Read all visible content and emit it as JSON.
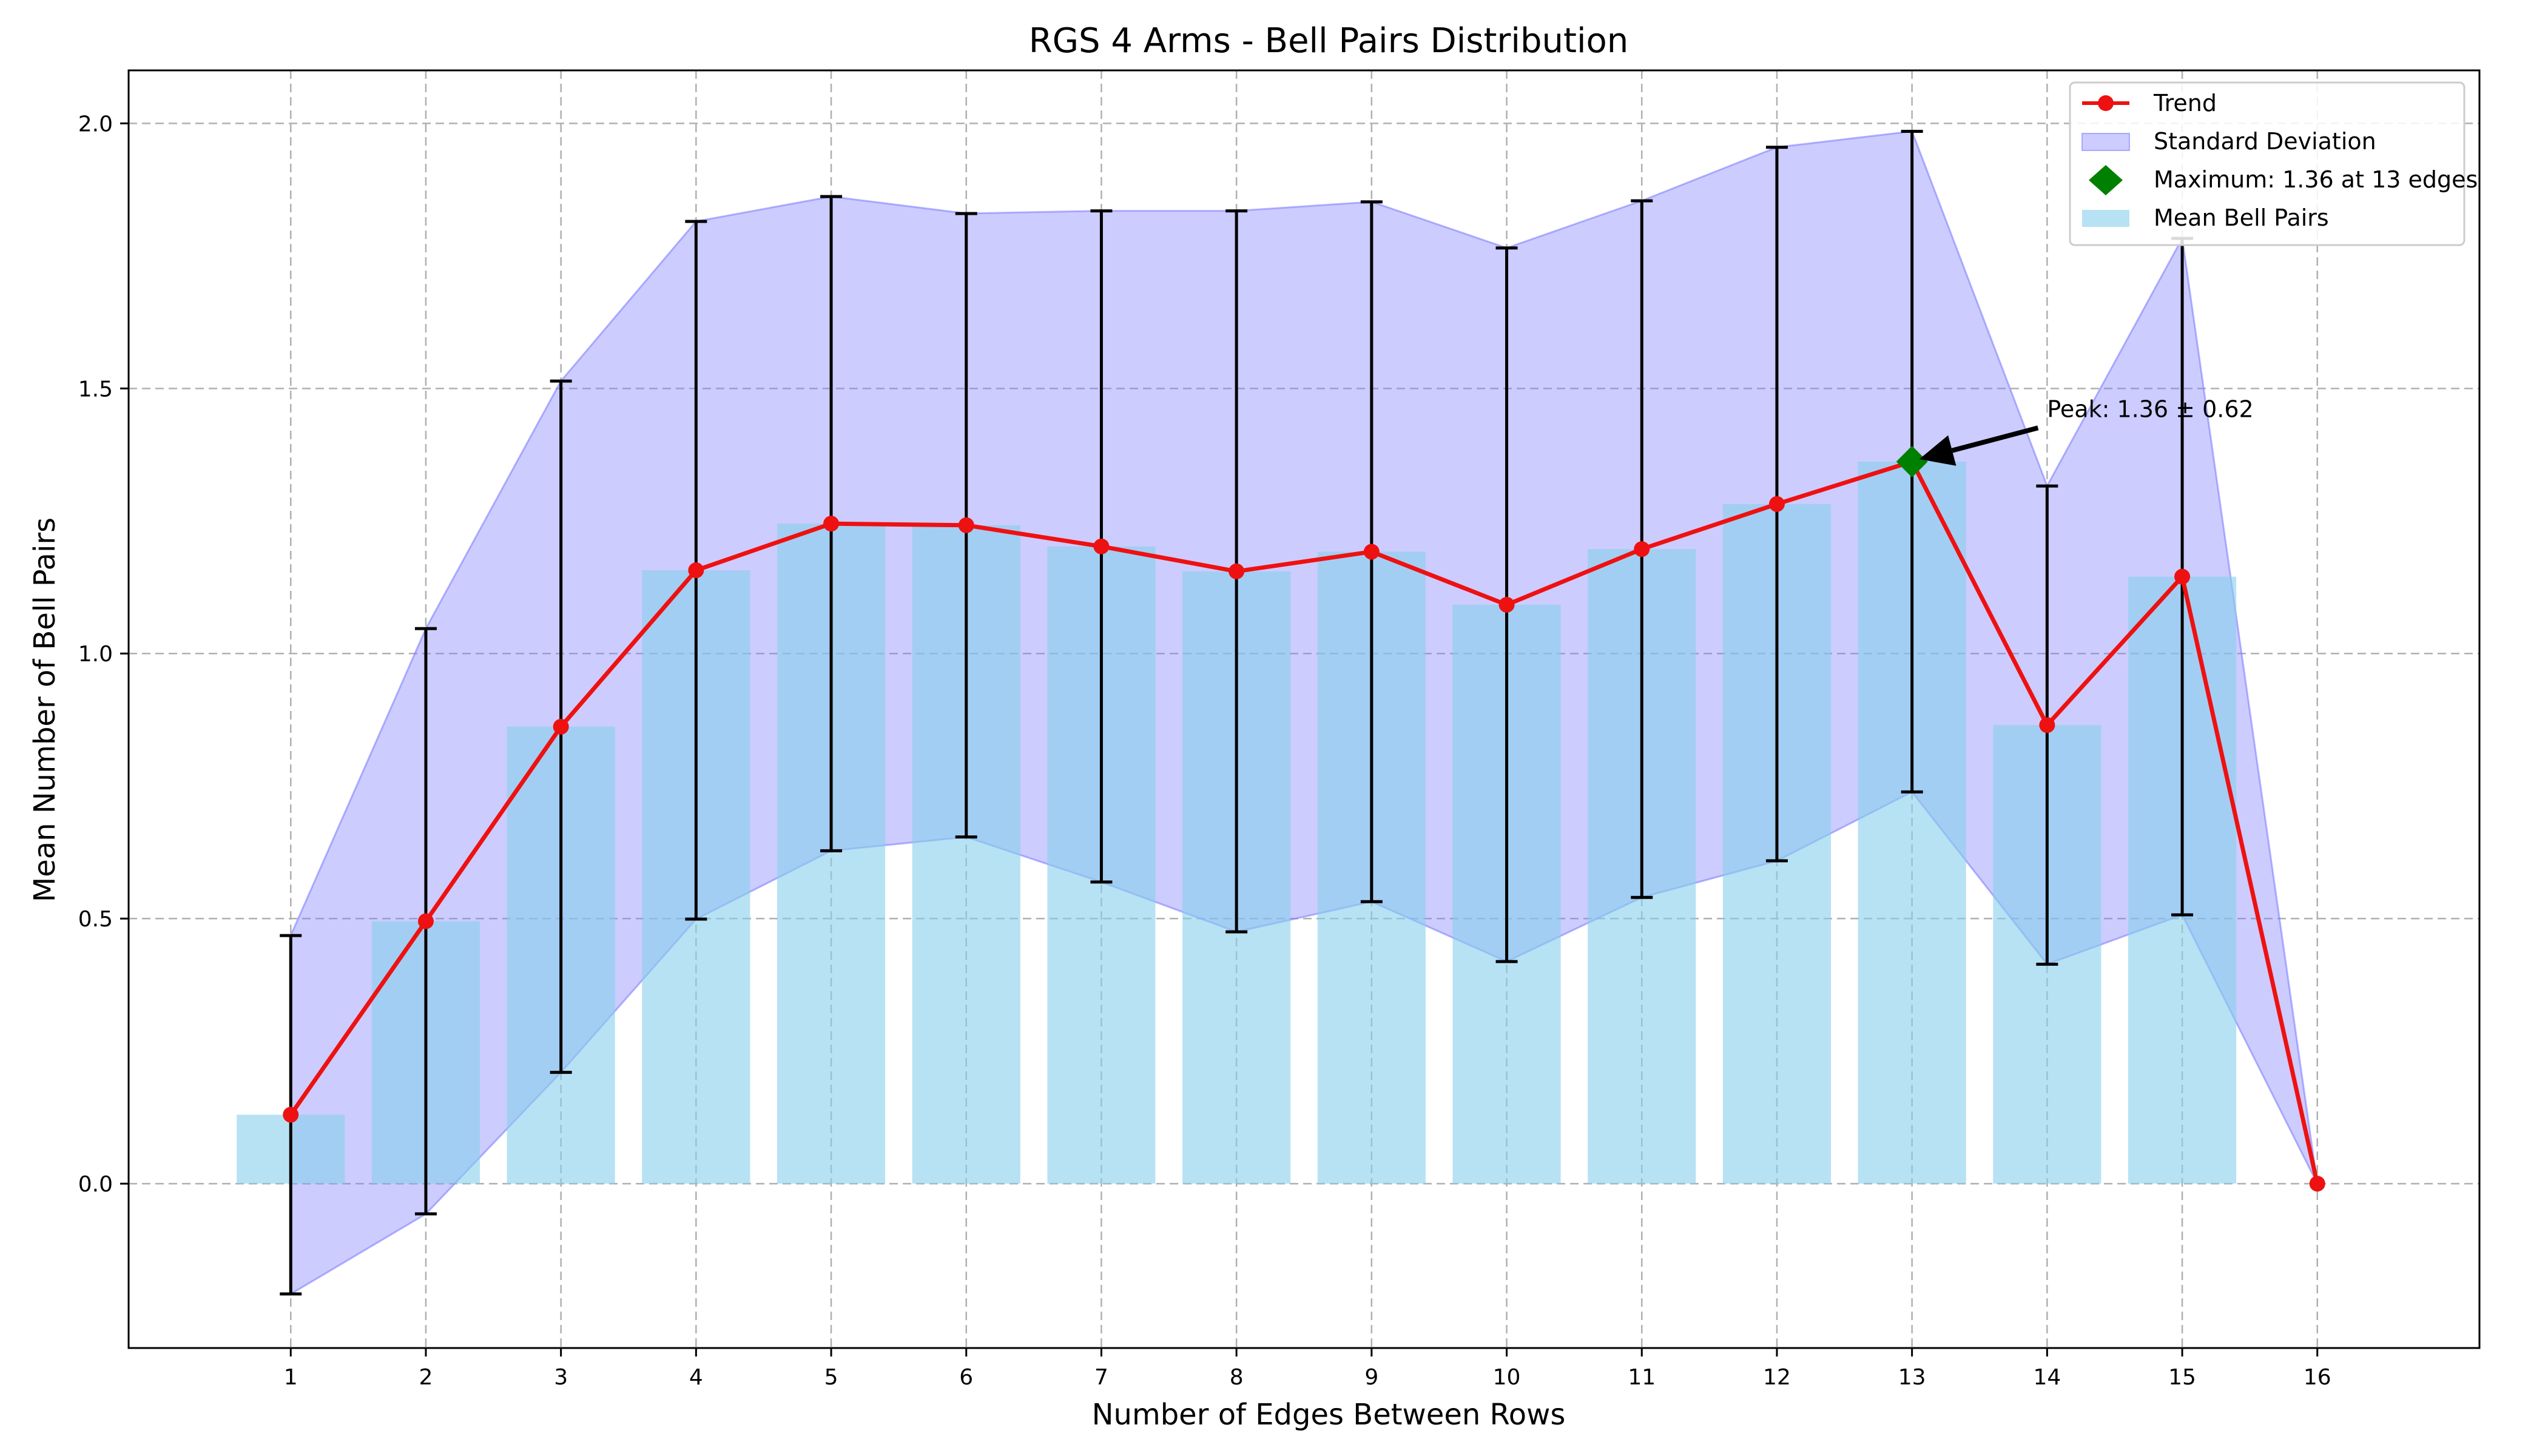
{
  "chart_data": {
    "type": "bar",
    "title": "RGS 4 Arms - Bell Pairs Distribution",
    "xlabel": "Number of Edges Between Rows",
    "ylabel": "Mean Number of Bell Pairs",
    "xlim": [
      -0.2,
      17.2
    ],
    "ylim": [
      -0.31,
      2.1
    ],
    "grid": true,
    "legend_position": "top-right",
    "x": [
      1,
      2,
      3,
      4,
      5,
      6,
      7,
      8,
      9,
      10,
      11,
      12,
      13,
      14,
      15,
      16
    ],
    "x_tick_labels": [
      "1",
      "2",
      "3",
      "4",
      "5",
      "6",
      "7",
      "8",
      "9",
      "10",
      "11",
      "12",
      "13",
      "14",
      "15",
      "16"
    ],
    "y_ticks": [
      0.0,
      0.5,
      1.0,
      1.5,
      2.0
    ],
    "y_tick_labels": [
      "0.0",
      "0.5",
      "1.0",
      "1.5",
      "2.0"
    ],
    "series": [
      {
        "name": "Mean Bell Pairs",
        "kind": "bar",
        "color": "#87ceeb",
        "values": [
          0.13,
          0.495,
          0.862,
          1.157,
          1.245,
          1.242,
          1.202,
          1.155,
          1.192,
          1.092,
          1.197,
          1.282,
          1.362,
          0.865,
          1.145,
          0.0
        ]
      },
      {
        "name": "Trend",
        "kind": "line",
        "color": "#ee1111",
        "values": [
          0.13,
          0.495,
          0.862,
          1.157,
          1.245,
          1.242,
          1.202,
          1.155,
          1.192,
          1.092,
          1.197,
          1.282,
          1.362,
          0.865,
          1.145,
          0.0
        ]
      },
      {
        "name": "Standard Deviation",
        "kind": "band",
        "color": "#8080ff",
        "std": [
          0.338,
          0.552,
          0.652,
          0.658,
          0.617,
          0.588,
          0.633,
          0.68,
          0.66,
          0.673,
          0.657,
          0.673,
          0.623,
          0.451,
          0.638,
          0.0
        ]
      }
    ],
    "legend": [
      {
        "label": "Trend",
        "kind": "line"
      },
      {
        "label": "Standard Deviation",
        "kind": "band"
      },
      {
        "label": "Maximum: 1.36 at 13 edges",
        "kind": "marker"
      },
      {
        "label": "Mean Bell Pairs",
        "kind": "bar"
      }
    ],
    "maximum": {
      "x": 13,
      "y": 1.362,
      "color": "#008000"
    },
    "annotation": {
      "text": "Peak: 1.36 ± 0.62",
      "x": 13,
      "y": 1.362,
      "text_x": 14,
      "text_y": 1.46
    }
  }
}
